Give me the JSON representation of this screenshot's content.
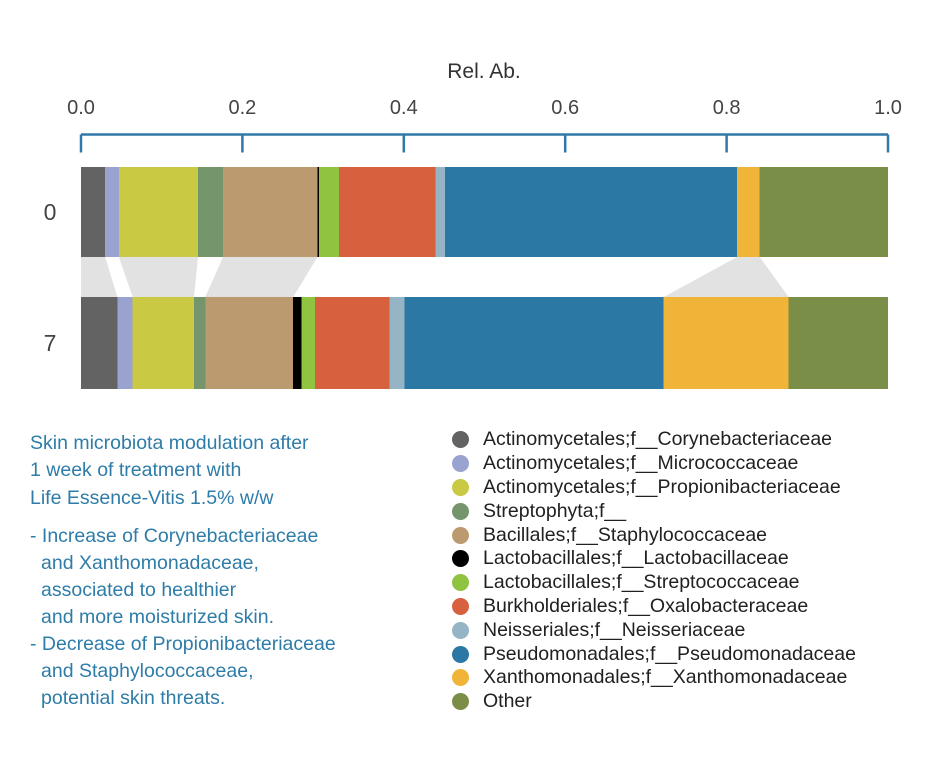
{
  "chart_data": {
    "type": "bar",
    "variant": "horizontal-stacked",
    "title": "Rel. Ab.",
    "xlabel": "Rel. Ab.",
    "xlim": [
      0,
      1
    ],
    "x_tick_labels": [
      "0.0",
      "0.2",
      "0.4",
      "0.6",
      "0.8",
      "1.0"
    ],
    "categories": [
      "0",
      "7"
    ],
    "series": [
      {
        "name": "Actinomycetales;f__Corynebacteriaceae",
        "color": "#636363",
        "values": [
          0.03,
          0.045
        ]
      },
      {
        "name": "Actinomycetales;f__Micrococcaceae",
        "color": "#9aa3cf",
        "values": [
          0.017,
          0.019
        ]
      },
      {
        "name": "Actinomycetales;f__Propionibacteriaceae",
        "color": "#c9c944",
        "values": [
          0.098,
          0.076
        ]
      },
      {
        "name": "Streptophyta;f__",
        "color": "#75956d",
        "values": [
          0.031,
          0.014
        ]
      },
      {
        "name": "Bacillales;f__Staphylococcaceae",
        "color": "#bc9a6f",
        "values": [
          0.117,
          0.109
        ]
      },
      {
        "name": "Lactobacillales;f__Lactobacillaceae",
        "color": "#000000",
        "values": [
          0.002,
          0.01
        ]
      },
      {
        "name": "Lactobacillales;f__Streptococcaceae",
        "color": "#90c33f",
        "values": [
          0.025,
          0.017
        ]
      },
      {
        "name": "Burkholderiales;f__Oxalobacteraceae",
        "color": "#d7603f",
        "values": [
          0.119,
          0.092
        ]
      },
      {
        "name": "Neisseriales;f__Neisseriaceae",
        "color": "#95b4c6",
        "values": [
          0.012,
          0.019
        ]
      },
      {
        "name": "Pseudomonadales;f__Pseudomonadaceae",
        "color": "#2b78a5",
        "values": [
          0.362,
          0.321
        ]
      },
      {
        "name": "Xanthomonadales;f__Xanthomonadaceae",
        "color": "#f0b438",
        "values": [
          0.028,
          0.155
        ]
      },
      {
        "name": "Other",
        "color": "#7b8e48",
        "values": [
          0.159,
          0.123
        ]
      }
    ],
    "connectors": {
      "color": "#e2e2e2",
      "series": [
        "Actinomycetales;f__Corynebacteriaceae",
        "Actinomycetales;f__Propionibacteriaceae",
        "Bacillales;f__Staphylococcaceae",
        "Xanthomonadales;f__Xanthomonadaceae"
      ]
    },
    "axis_color": "#3078a8",
    "tick_label_color": "#444444",
    "row_label_color": "#444444",
    "legend_position": "bottom-right",
    "grid": false
  },
  "annotation": {
    "text_color": "#2e7ca8",
    "title_lines": [
      "Skin microbiota modulation after",
      "1 week of treatment with",
      "Life Essence-Vitis 1.5% w/w"
    ],
    "bullet_lines": [
      {
        "text": "- Increase of Corynebacteriaceae",
        "indent": false
      },
      {
        "text": "and Xanthomonadaceae,",
        "indent": true
      },
      {
        "text": "associated to healthier",
        "indent": true
      },
      {
        "text": "and more moisturized skin.",
        "indent": true
      },
      {
        "text": "- Decrease of Propionibacteriaceae",
        "indent": false
      },
      {
        "text": "and Staphylococcaceae,",
        "indent": true
      },
      {
        "text": "potential skin threats.",
        "indent": true
      }
    ]
  },
  "colors": {
    "background": "#ffffff"
  }
}
